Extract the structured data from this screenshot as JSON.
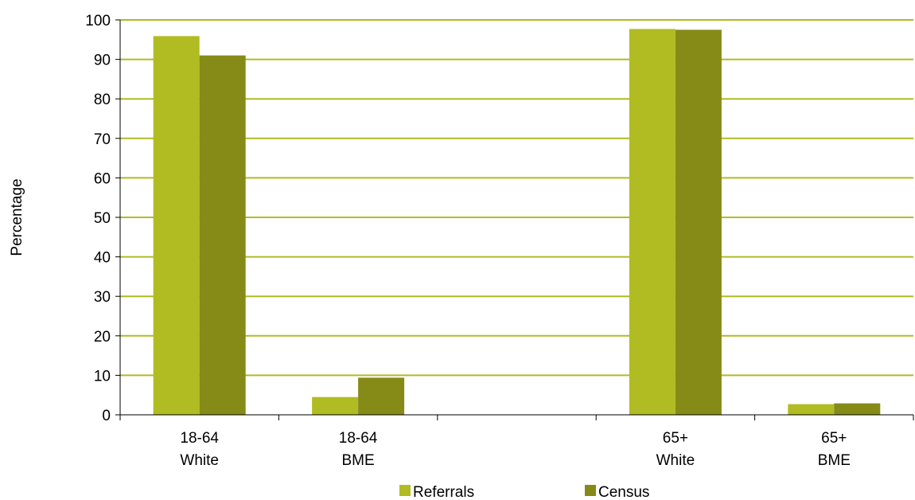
{
  "chart_data": {
    "type": "bar",
    "title": "",
    "xlabel": "",
    "ylabel": "Percentage",
    "ylim": [
      0,
      100
    ],
    "yticks": [
      0,
      10,
      20,
      30,
      40,
      50,
      60,
      70,
      80,
      90,
      100
    ],
    "grid": true,
    "legend_position": "bottom",
    "categories": [
      [
        "18-64",
        "White"
      ],
      [
        "18-64",
        "BME"
      ],
      [
        "",
        ""
      ],
      [
        "65+",
        "White"
      ],
      [
        "65+",
        "BME"
      ]
    ],
    "series": [
      {
        "name": "Referrals",
        "color": "#b0bc22",
        "values": [
          95.9,
          4.5,
          null,
          97.7,
          2.7
        ]
      },
      {
        "name": "Census",
        "color": "#868b18",
        "values": [
          91.0,
          9.4,
          null,
          97.5,
          2.9
        ]
      }
    ],
    "gridline_color": "#b0bc22"
  }
}
